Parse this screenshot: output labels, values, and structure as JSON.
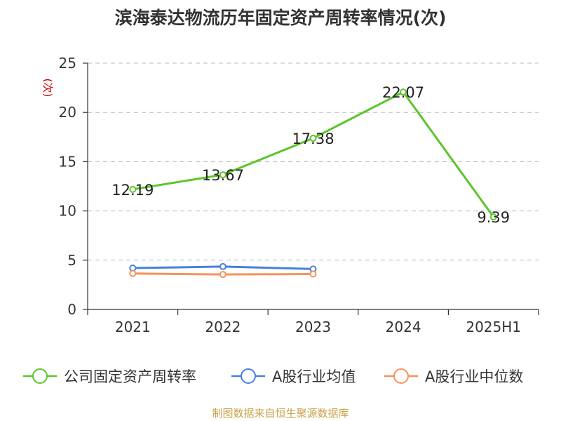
{
  "chart_data": {
    "type": "line",
    "title": "滨海泰达物流历年固定资产周转率情况(次)",
    "ylabel": "(次)",
    "categories": [
      "2021",
      "2022",
      "2023",
      "2024",
      "2025H1"
    ],
    "ylim": [
      0,
      25
    ],
    "yticks": [
      0,
      5,
      10,
      15,
      20,
      25
    ],
    "grid": true,
    "legend_position": "bottom",
    "series": [
      {
        "name": "公司固定资产周转率",
        "color": "#5cc52b",
        "values": [
          12.19,
          13.67,
          17.38,
          22.07,
          9.39
        ],
        "labels": [
          "12.19",
          "13.67",
          "17.38",
          "22.07",
          "9.39"
        ]
      },
      {
        "name": "A股行业均值",
        "color": "#4a7fe0",
        "values": [
          4.2,
          4.35,
          4.1,
          null,
          null
        ]
      },
      {
        "name": "A股行业中位数",
        "color": "#f5925c",
        "values": [
          3.65,
          3.55,
          3.6,
          null,
          null
        ]
      }
    ]
  },
  "footer": {
    "source": "制图数据来自恒生聚源数据库"
  }
}
